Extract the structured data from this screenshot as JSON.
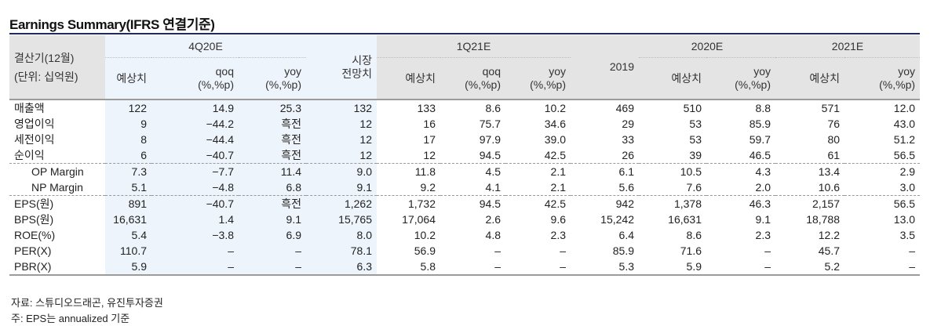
{
  "title": "Earnings Summary(IFRS 연결기준)",
  "header": {
    "row_label_line1": "결산기(12월)",
    "row_label_line2": "(단위: 십억원)",
    "groups": {
      "q4_20e": "4Q20E",
      "market_line1": "시장",
      "market_line2": "전망치",
      "q1_21e": "1Q21E",
      "y2019": "2019",
      "y2020e": "2020E",
      "y2021e": "2021E"
    },
    "sub": {
      "estimate": "예상치",
      "qoq_line1": "qoq",
      "yoy_line1": "yoy",
      "pct_line2": "(%,%p)"
    }
  },
  "rows": [
    {
      "label": "매출액",
      "cells": [
        "122",
        "14.9",
        "25.3",
        "132",
        "133",
        "8.6",
        "10.2",
        "469",
        "510",
        "8.8",
        "571",
        "12.0"
      ]
    },
    {
      "label": "영업이익",
      "cells": [
        "9",
        "−44.2",
        "흑전",
        "12",
        "16",
        "75.7",
        "34.6",
        "29",
        "53",
        "85.9",
        "76",
        "43.0"
      ]
    },
    {
      "label": "세전이익",
      "cells": [
        "8",
        "−44.4",
        "흑전",
        "12",
        "17",
        "97.9",
        "39.0",
        "33",
        "53",
        "59.7",
        "80",
        "51.2"
      ]
    },
    {
      "label": "순이익",
      "cells": [
        "6",
        "−40.7",
        "흑전",
        "12",
        "12",
        "94.5",
        "42.5",
        "26",
        "39",
        "46.5",
        "61",
        "56.5"
      ]
    },
    {
      "label": "OP Margin",
      "cells": [
        "7.3",
        "−7.7",
        "11.4",
        "9.0",
        "11.8",
        "4.5",
        "2.1",
        "6.1",
        "10.5",
        "4.3",
        "13.4",
        "2.9"
      ]
    },
    {
      "label": "NP Margin",
      "cells": [
        "5.1",
        "−4.8",
        "6.8",
        "9.1",
        "9.2",
        "4.1",
        "2.1",
        "5.6",
        "7.6",
        "2.0",
        "10.6",
        "3.0"
      ]
    },
    {
      "label": "EPS(원)",
      "cells": [
        "891",
        "−40.7",
        "흑전",
        "1,262",
        "1,732",
        "94.5",
        "42.5",
        "942",
        "1,378",
        "46.3",
        "2,157",
        "56.5"
      ]
    },
    {
      "label": "BPS(원)",
      "cells": [
        "16,631",
        "1.4",
        "9.1",
        "15,765",
        "17,064",
        "2.6",
        "9.6",
        "15,242",
        "16,631",
        "9.1",
        "18,788",
        "13.0"
      ]
    },
    {
      "label": "ROE(%)",
      "cells": [
        "5.4",
        "−3.8",
        "6.9",
        "8.0",
        "10.2",
        "4.8",
        "2.3",
        "6.4",
        "8.6",
        "2.3",
        "12.2",
        "3.5"
      ]
    },
    {
      "label": "PER(X)",
      "cells": [
        "110.7",
        "–",
        "–",
        "78.1",
        "56.9",
        "–",
        "–",
        "85.9",
        "71.6",
        "–",
        "45.7",
        "–"
      ]
    },
    {
      "label": "PBR(X)",
      "cells": [
        "5.9",
        "–",
        "–",
        "6.3",
        "5.8",
        "–",
        "–",
        "5.3",
        "5.9",
        "–",
        "5.2",
        "–"
      ]
    }
  ],
  "notes": {
    "source": "자료: 스튜디오드래곤, 유진투자증권",
    "footnote": "주: EPS는 annualized 기준"
  },
  "colors": {
    "title_rule": "#1d2b5e",
    "header_gray": "#e4e4e4",
    "highlight_blue": "#eef4fb"
  }
}
